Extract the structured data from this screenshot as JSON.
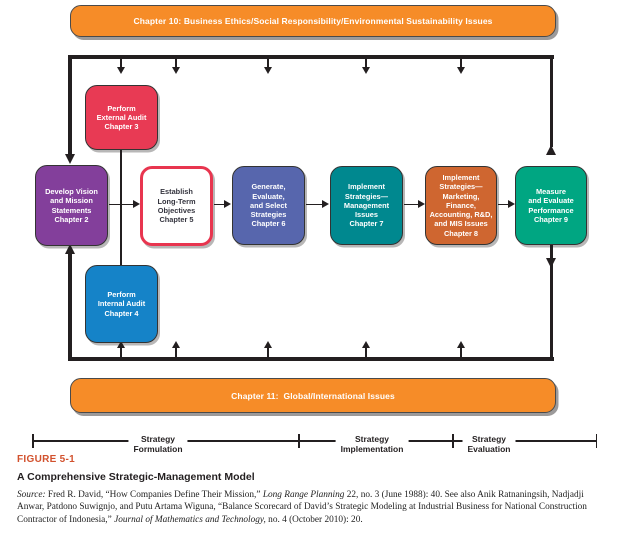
{
  "banners": {
    "top": "Chapter 10: Business Ethics/Social Responsibility/Environmental Sustainability Issues",
    "bottom": "Chapter 11:  Global/International Issues"
  },
  "boxes": {
    "external_audit": {
      "label": "Perform\nExternal Audit\nChapter 3",
      "fill": "#E83A54"
    },
    "vision_mission": {
      "label": "Develop Vision\nand Mission\nStatements\nChapter 2",
      "fill": "#833F9B"
    },
    "objectives": {
      "label": "Establish\nLong-Term\nObjectives\nChapter 5",
      "fill": "#FFFFFF",
      "border": "#E8354F",
      "text": "#35353F"
    },
    "internal_audit": {
      "label": "Perform\nInternal Audit\nChapter 4",
      "fill": "#1583C8"
    },
    "generate_strategies": {
      "label": "Generate,\nEvaluate,\nand Select\nStrategies\nChapter 6",
      "fill": "#5766AD"
    },
    "implement_management": {
      "label": "Implement\nStrategies—\nManagement\nIssues\nChapter 7",
      "fill": "#00888F"
    },
    "implement_functional": {
      "label": "Implement\nStrategies—\nMarketing,\nFinance,\nAccounting, R&D,\nand MIS Issues\nChapter 8",
      "fill": "#CF6630"
    },
    "measure_performance": {
      "label": "Measure\nand Evaluate\nPerformance\nChapter 9",
      "fill": "#00A682"
    }
  },
  "stages": {
    "formulation": "Strategy\nFormulation",
    "implementation": "Strategy\nImplementation",
    "evaluation": "Strategy\nEvaluation"
  },
  "figure": {
    "label": "FIGURE 5-1",
    "title": "A Comprehensive Strategic-Management Model",
    "source_segments": [
      {
        "text": "Source:",
        "italic": true
      },
      {
        "text": " Fred R. David, “How Companies Define Their Mission,” ",
        "italic": false
      },
      {
        "text": "Long Range Planning",
        "italic": true
      },
      {
        "text": " 22, no. 3 (June 1988): 40. See also Anik Ratnaningsih, Nadjadji Anwar, Patdono Suwignjo, and Putu Artama Wiguna, “Balance Scorecard of David’s Strategic Modeling at Industrial Business for National Construction Contractor of Indonesia,” ",
        "italic": false
      },
      {
        "text": "Journal of Mathematics and Technology,",
        "italic": true
      },
      {
        "text": " no. 4 (October 2010): 20.",
        "italic": false
      }
    ]
  },
  "colors": {
    "banner_orange": "#F68C28",
    "line_black": "#231F20",
    "figure_label_orange": "#D2512D"
  }
}
